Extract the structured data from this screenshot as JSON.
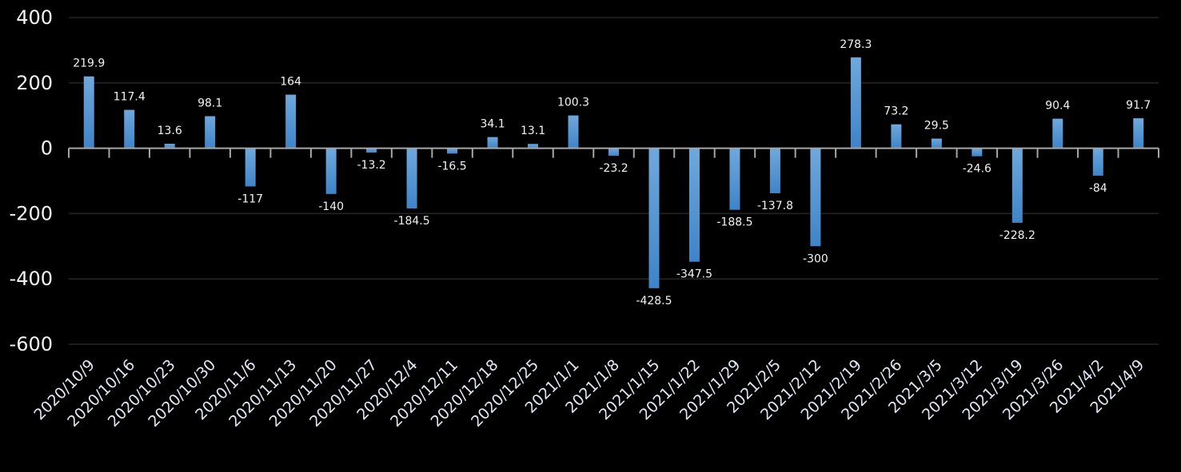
{
  "chart_data": {
    "type": "bar",
    "categories": [
      "2020/10/9",
      "2020/10/16",
      "2020/10/23",
      "2020/10/30",
      "2020/11/6",
      "2020/11/13",
      "2020/11/20",
      "2020/11/27",
      "2020/12/4",
      "2020/12/11",
      "2020/12/18",
      "2020/12/25",
      "2021/1/1",
      "2021/1/8",
      "2021/1/15",
      "2021/1/22",
      "2021/1/29",
      "2021/2/5",
      "2021/2/12",
      "2021/2/19",
      "2021/2/26",
      "2021/3/5",
      "2021/3/12",
      "2021/3/19",
      "2021/3/26",
      "2021/4/2",
      "2021/4/9"
    ],
    "values": [
      219.9,
      117.4,
      13.6,
      98.1,
      -117,
      164,
      -140,
      -13.2,
      -184.5,
      -16.5,
      34.1,
      13.1,
      100.3,
      -23.2,
      -428.5,
      -347.5,
      -188.5,
      -137.8,
      -300,
      278.3,
      73.2,
      29.5,
      -24.6,
      -228.2,
      90.4,
      -84,
      91.7
    ],
    "ylim": [
      -600,
      400
    ],
    "yticks": [
      400,
      200,
      0,
      -200,
      -400,
      -600
    ],
    "grid": true,
    "background": "#000000",
    "bar_color": "#5b9bd5",
    "title": "",
    "xlabel": "",
    "ylabel": ""
  }
}
